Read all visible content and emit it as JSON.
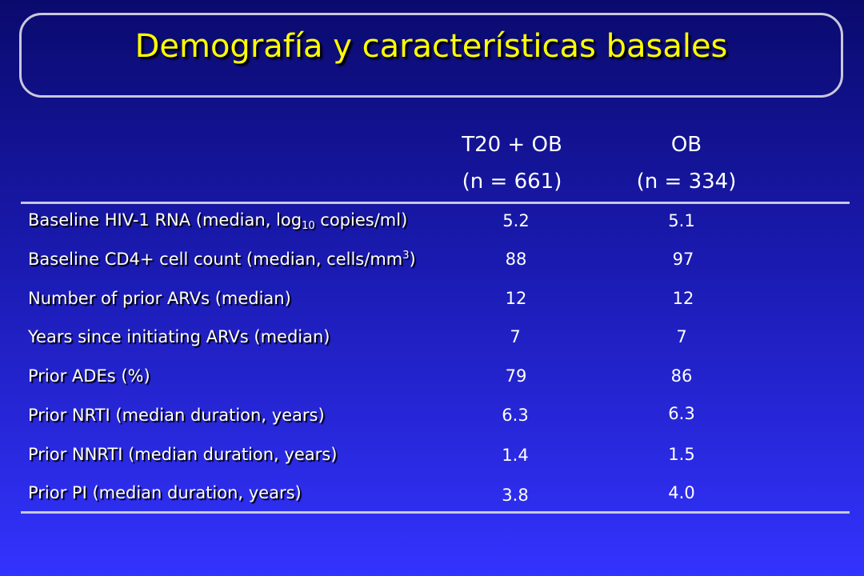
{
  "title": "Demografía y características basales",
  "columns": [
    {
      "name": "T20 + OB",
      "n": "(n = 661)"
    },
    {
      "name": "OB",
      "n": "(n = 334)"
    }
  ],
  "rows": [
    {
      "label_pre": "Baseline HIV-1 RNA (median, log",
      "label_sub": "10",
      "label_post": " copies/ml)",
      "t20": "5.2",
      "ob": "5.1"
    },
    {
      "label_pre": "Baseline CD4+ cell count (median, cells/mm",
      "label_sup": "3",
      "label_post": ")",
      "t20": "88",
      "ob": "97"
    },
    {
      "label": "Number of prior ARVs (median)",
      "t20": "12",
      "ob": "12"
    },
    {
      "label": "Years since initiating ARVs (median)",
      "t20": "7",
      "ob": "7"
    },
    {
      "label": "Prior ADEs (%)",
      "t20": "79",
      "ob": "86"
    },
    {
      "label": "Prior NRTI (median duration, years)",
      "t20": "6.3",
      "ob": "6.3"
    },
    {
      "label": "Prior NNRTI (median duration, years)",
      "t20": "1.4",
      "ob": "1.5"
    },
    {
      "label": "Prior PI (median duration, years)",
      "t20": "3.8",
      "ob": "4.0"
    }
  ]
}
